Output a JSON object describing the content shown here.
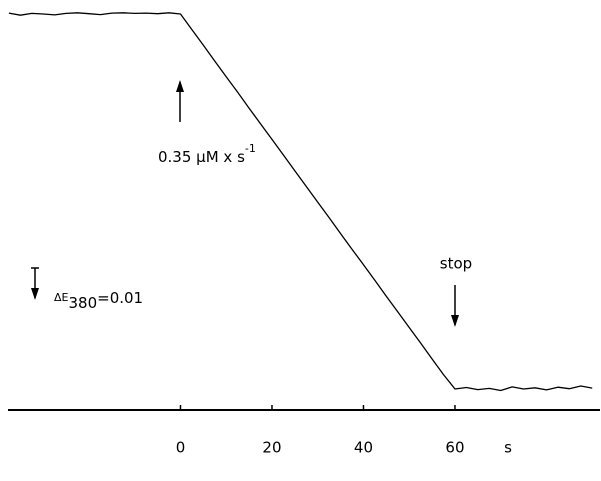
{
  "chart_data": {
    "type": "line",
    "x": [
      -37.5,
      -35,
      -32.5,
      -30,
      -27.5,
      -25,
      -22.5,
      -20,
      -17.5,
      -15,
      -12.5,
      -10,
      -7.5,
      -5,
      -2.5,
      0,
      2.5,
      5,
      7.5,
      10,
      12.5,
      15,
      17.5,
      20,
      22.5,
      25,
      27.5,
      30,
      32.5,
      35,
      37.5,
      40,
      42.5,
      45,
      47.5,
      50,
      52.5,
      55,
      57.5,
      60,
      62.5,
      65,
      67.5,
      70,
      72.5,
      75,
      77.5,
      80,
      82.5,
      85,
      87.5,
      90
    ],
    "series": [
      {
        "color": "#000000",
        "values": [
          0.0003,
          -0.0004,
          0.0002,
          0,
          -0.0003,
          0.0002,
          0.0004,
          0.0001,
          -0.0002,
          0.0003,
          0.0004,
          0.0002,
          0.0003,
          0.0001,
          0.0004,
          0,
          -0.0052,
          -0.0104,
          -0.0157,
          -0.0209,
          -0.0261,
          -0.0314,
          -0.0366,
          -0.0418,
          -0.047,
          -0.0523,
          -0.0575,
          -0.0627,
          -0.0679,
          -0.0732,
          -0.0784,
          -0.0836,
          -0.0888,
          -0.0941,
          -0.0993,
          -0.1045,
          -0.1097,
          -0.115,
          -0.1202,
          -0.125,
          -0.1245,
          -0.1252,
          -0.1248,
          -0.1255,
          -0.1243,
          -0.125,
          -0.1246,
          -0.1253,
          -0.1244,
          -0.1249,
          -0.124,
          -0.1247
        ]
      }
    ],
    "xlim": [
      -37.7,
      91.7
    ],
    "xticks": [
      0,
      20,
      40,
      60
    ],
    "x_unit": "s",
    "ylim": [
      -0.14,
      0.004
    ],
    "scale_bar": {
      "value": 0.01,
      "symbol": "ΔE",
      "subscript": "380",
      "suffix": "=0.01"
    },
    "annotations": {
      "rate": "0.35 μM x s",
      "rate_exponent": "-1",
      "stop": "stop"
    }
  }
}
